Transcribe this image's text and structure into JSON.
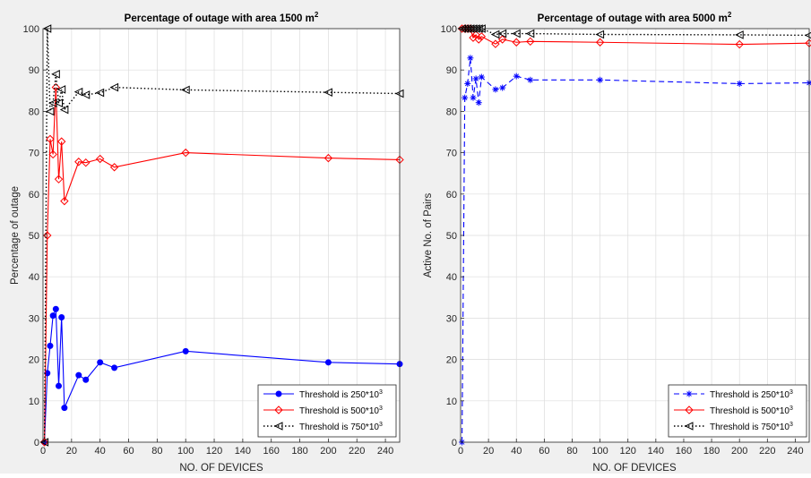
{
  "chart_data": [
    {
      "type": "line",
      "title": "Percentage of outage with area 1500 m",
      "title_superscript": "2",
      "xlabel": "NO. OF DEVICES",
      "ylabel": "Percentage of outage",
      "xlim": [
        0,
        250
      ],
      "ylim": [
        0,
        100
      ],
      "xticks": [
        0,
        20,
        40,
        60,
        80,
        100,
        120,
        140,
        160,
        180,
        200,
        220,
        240
      ],
      "yticks": [
        0,
        10,
        20,
        30,
        40,
        50,
        60,
        70,
        80,
        90,
        100
      ],
      "grid": true,
      "legend_position": "bottom-right",
      "x": [
        1,
        3,
        5,
        7,
        9,
        11,
        13,
        15,
        25,
        30,
        40,
        50,
        100,
        200,
        250
      ],
      "series": [
        {
          "name": "Threshold is 250*10",
          "name_superscript": "3",
          "color": "#0000ff",
          "line_style": "solid",
          "marker": "dot",
          "values": [
            0,
            16.7,
            23.3,
            30.6,
            32.2,
            13.6,
            30.2,
            8.3,
            16.2,
            15.1,
            19.3,
            18.0,
            22.0,
            19.3,
            18.9
          ]
        },
        {
          "name": "Threshold is 500*10",
          "name_superscript": "3",
          "color": "#ff0000",
          "line_style": "solid",
          "marker": "diamond",
          "values": [
            0,
            50.0,
            73.3,
            69.6,
            85.8,
            63.6,
            72.7,
            58.3,
            67.8,
            67.6,
            68.5,
            66.5,
            70.0,
            68.7,
            68.3
          ]
        },
        {
          "name": "Threshold is 750*10",
          "name_superscript": "3",
          "color": "#000000",
          "line_style": "dotted",
          "marker": "triangle-left",
          "values": [
            0,
            100.0,
            80.0,
            82.0,
            89.0,
            82.0,
            85.3,
            80.4,
            84.7,
            84.0,
            84.5,
            85.8,
            85.2,
            84.6,
            84.3
          ]
        }
      ]
    },
    {
      "type": "line",
      "title": "Percentage of outage with area 5000 m",
      "title_superscript": "2",
      "xlabel": "NO. OF DEVICES",
      "ylabel": "Active No. of Pairs",
      "xlim": [
        0,
        250
      ],
      "ylim": [
        0,
        100
      ],
      "xticks": [
        0,
        20,
        40,
        60,
        80,
        100,
        120,
        140,
        160,
        180,
        200,
        220,
        240
      ],
      "yticks": [
        0,
        10,
        20,
        30,
        40,
        50,
        60,
        70,
        80,
        90,
        100
      ],
      "grid": true,
      "legend_position": "bottom-right",
      "x": [
        1,
        3,
        5,
        7,
        9,
        11,
        13,
        15,
        25,
        30,
        40,
        50,
        100,
        200,
        250
      ],
      "series": [
        {
          "name": "Threshold is 250*10",
          "name_superscript": "3",
          "color": "#0000ff",
          "line_style": "dashed",
          "marker": "asterisk",
          "values": [
            0,
            83.3,
            86.7,
            92.9,
            83.3,
            87.9,
            82.1,
            88.3,
            85.3,
            85.7,
            88.5,
            87.6,
            87.6,
            86.7,
            86.9
          ]
        },
        {
          "name": "Threshold is 500*10",
          "name_superscript": "3",
          "color": "#ff0000",
          "line_style": "solid",
          "marker": "diamond",
          "values": [
            100,
            100,
            100,
            100,
            97.8,
            98.5,
            97.4,
            98.1,
            96.3,
            97.4,
            96.7,
            96.9,
            96.7,
            96.2,
            96.5
          ]
        },
        {
          "name": "Threshold is 750*10",
          "name_superscript": "3",
          "color": "#000000",
          "line_style": "dotted",
          "marker": "triangle-left",
          "values": [
            100,
            100,
            100,
            100,
            100,
            100,
            100,
            100,
            98.6,
            98.8,
            98.8,
            98.8,
            98.6,
            98.5,
            98.4
          ]
        }
      ]
    }
  ]
}
